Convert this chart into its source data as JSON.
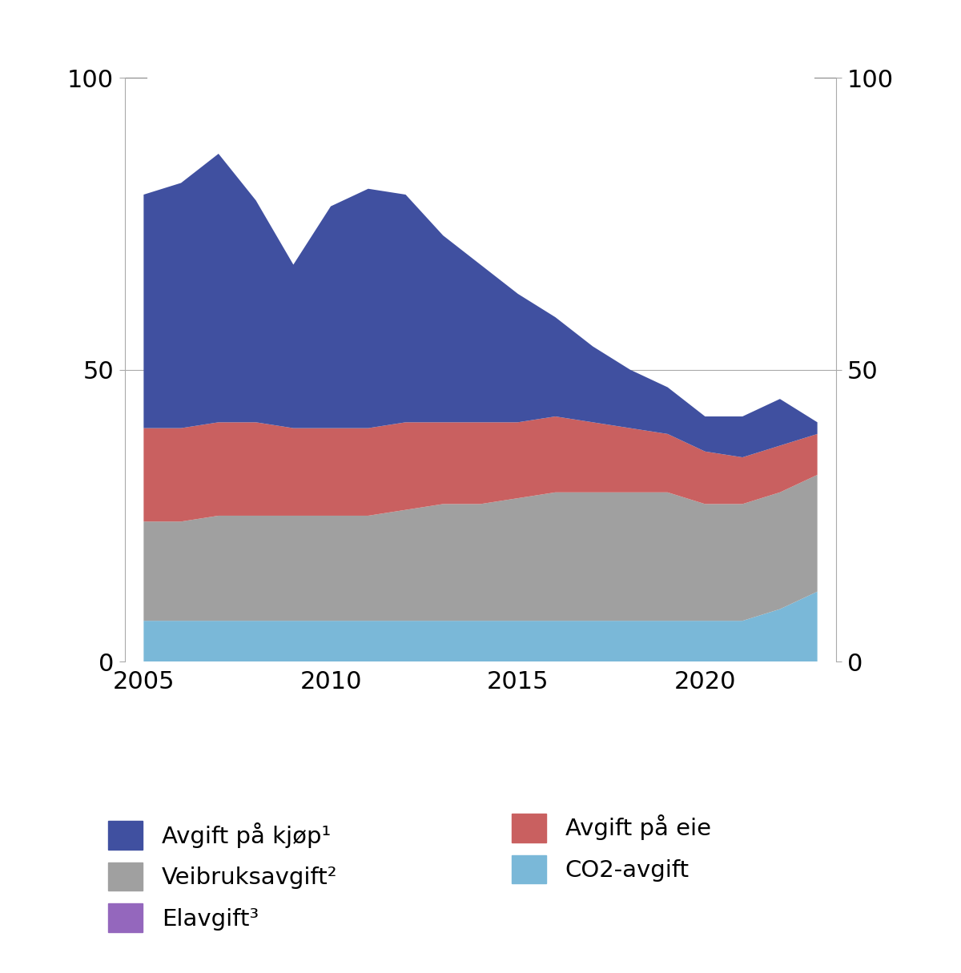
{
  "years": [
    2005,
    2006,
    2007,
    2008,
    2009,
    2010,
    2011,
    2012,
    2013,
    2014,
    2015,
    2016,
    2017,
    2018,
    2019,
    2020,
    2021,
    2022,
    2023
  ],
  "co2_avgift": [
    7,
    7,
    7,
    7,
    7,
    7,
    7,
    7,
    7,
    7,
    7,
    7,
    7,
    7,
    7,
    7,
    7,
    9,
    12
  ],
  "veibruksavgift": [
    17,
    17,
    18,
    18,
    18,
    18,
    18,
    19,
    20,
    20,
    21,
    22,
    22,
    22,
    22,
    20,
    20,
    20,
    20
  ],
  "avgift_pa_eie": [
    16,
    16,
    16,
    16,
    15,
    15,
    15,
    15,
    14,
    14,
    13,
    13,
    12,
    11,
    10,
    9,
    8,
    8,
    7
  ],
  "avgift_pa_kjop": [
    40,
    42,
    46,
    38,
    28,
    38,
    41,
    39,
    32,
    27,
    22,
    17,
    13,
    10,
    8,
    6,
    7,
    8,
    2
  ],
  "elavgift": [
    0,
    0,
    0,
    0,
    0,
    0,
    0,
    0,
    0,
    0,
    0,
    0,
    0,
    0,
    0,
    0,
    0,
    0,
    0
  ],
  "color_co2": "#7ab8d8",
  "color_veibruk": "#a0a0a0",
  "color_eie": "#c96060",
  "color_kjop": "#4050a0",
  "color_elavgift": "#9467bd",
  "ylim": [
    0,
    100
  ],
  "yticks": [
    0,
    50,
    100
  ],
  "xticks": [
    2005,
    2010,
    2015,
    2020
  ],
  "xlim": [
    2004.5,
    2023.5
  ],
  "background_color": "#ffffff",
  "legend_items": [
    {
      "label": "Avgift på kjøp¹",
      "color": "#4050a0"
    },
    {
      "label": "Veibruksavgift²",
      "color": "#a0a0a0"
    },
    {
      "label": "Elavgift³",
      "color": "#9467bd"
    },
    {
      "label": "Avgift på eie",
      "color": "#c96060"
    },
    {
      "label": "CO2-avgift",
      "color": "#7ab8d8"
    }
  ]
}
